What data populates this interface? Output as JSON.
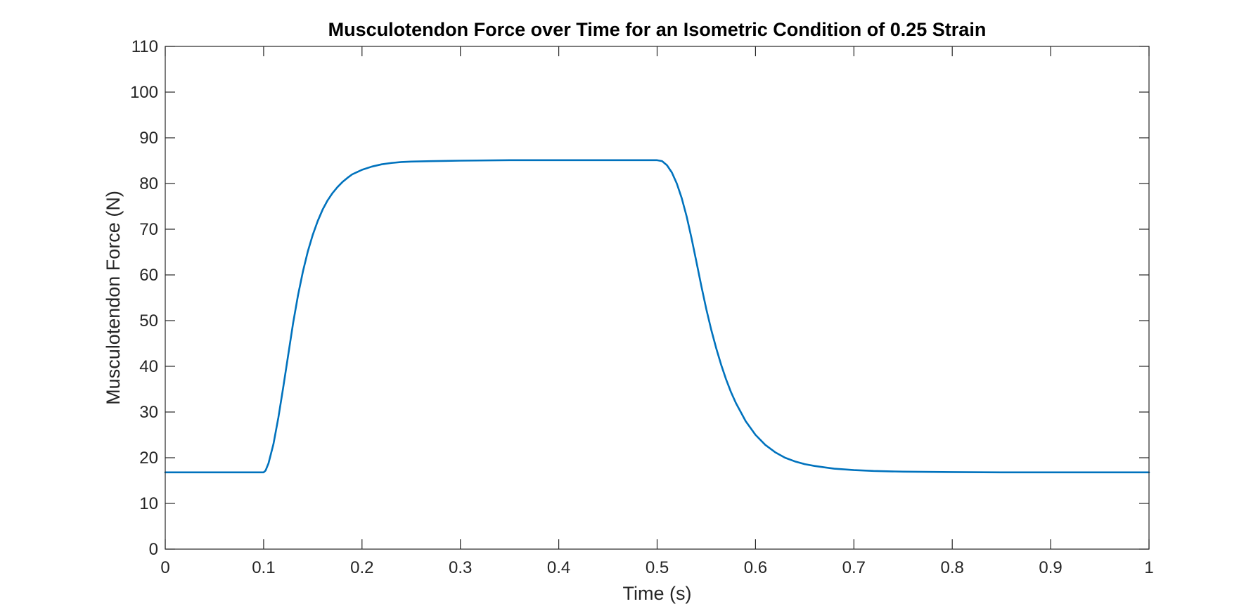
{
  "chart_data": {
    "type": "line",
    "title": "Musculotendon Force over Time for an Isometric Condition of 0.25 Strain",
    "xlabel": "Time (s)",
    "ylabel": "Musculotendon Force (N)",
    "xlim": [
      0,
      1
    ],
    "ylim": [
      0,
      110
    ],
    "xticks": [
      0,
      0.1,
      0.2,
      0.3,
      0.4,
      0.5,
      0.6,
      0.7,
      0.8,
      0.9,
      1
    ],
    "xtick_labels": [
      "0",
      "0.1",
      "0.2",
      "0.3",
      "0.4",
      "0.5",
      "0.6",
      "0.7",
      "0.8",
      "0.9",
      "1"
    ],
    "yticks": [
      0,
      10,
      20,
      30,
      40,
      50,
      60,
      70,
      80,
      90,
      100,
      110
    ],
    "ytick_labels": [
      "0",
      "10",
      "20",
      "30",
      "40",
      "50",
      "60",
      "70",
      "80",
      "90",
      "100",
      "110"
    ],
    "grid": false,
    "legend": "none",
    "series": [
      {
        "color": "#0072BD",
        "x": [
          0,
          0.05,
          0.1,
          0.102,
          0.105,
          0.11,
          0.115,
          0.12,
          0.125,
          0.13,
          0.135,
          0.14,
          0.145,
          0.15,
          0.155,
          0.16,
          0.165,
          0.17,
          0.175,
          0.18,
          0.185,
          0.19,
          0.2,
          0.21,
          0.22,
          0.23,
          0.24,
          0.25,
          0.27,
          0.3,
          0.35,
          0.4,
          0.45,
          0.5,
          0.505,
          0.51,
          0.515,
          0.52,
          0.525,
          0.53,
          0.535,
          0.54,
          0.545,
          0.55,
          0.555,
          0.56,
          0.565,
          0.57,
          0.575,
          0.58,
          0.59,
          0.6,
          0.61,
          0.62,
          0.63,
          0.64,
          0.65,
          0.66,
          0.67,
          0.68,
          0.7,
          0.72,
          0.75,
          0.8,
          0.85,
          0.9,
          1.0
        ],
        "y": [
          16.8,
          16.8,
          16.8,
          17.2,
          18.8,
          23.0,
          28.8,
          35.5,
          42.5,
          49.5,
          55.6,
          60.8,
          65.2,
          68.8,
          71.8,
          74.3,
          76.3,
          77.9,
          79.2,
          80.3,
          81.2,
          82.0,
          83.0,
          83.7,
          84.2,
          84.5,
          84.7,
          84.8,
          84.9,
          85.0,
          85.1,
          85.1,
          85.1,
          85.1,
          84.9,
          84.0,
          82.4,
          80.0,
          76.8,
          72.8,
          68.0,
          62.8,
          57.5,
          52.5,
          48.0,
          44.0,
          40.4,
          37.2,
          34.4,
          32.0,
          28.0,
          25.0,
          22.8,
          21.2,
          20.0,
          19.2,
          18.6,
          18.2,
          17.9,
          17.6,
          17.3,
          17.1,
          16.95,
          16.85,
          16.8,
          16.8,
          16.8
        ]
      }
    ]
  }
}
